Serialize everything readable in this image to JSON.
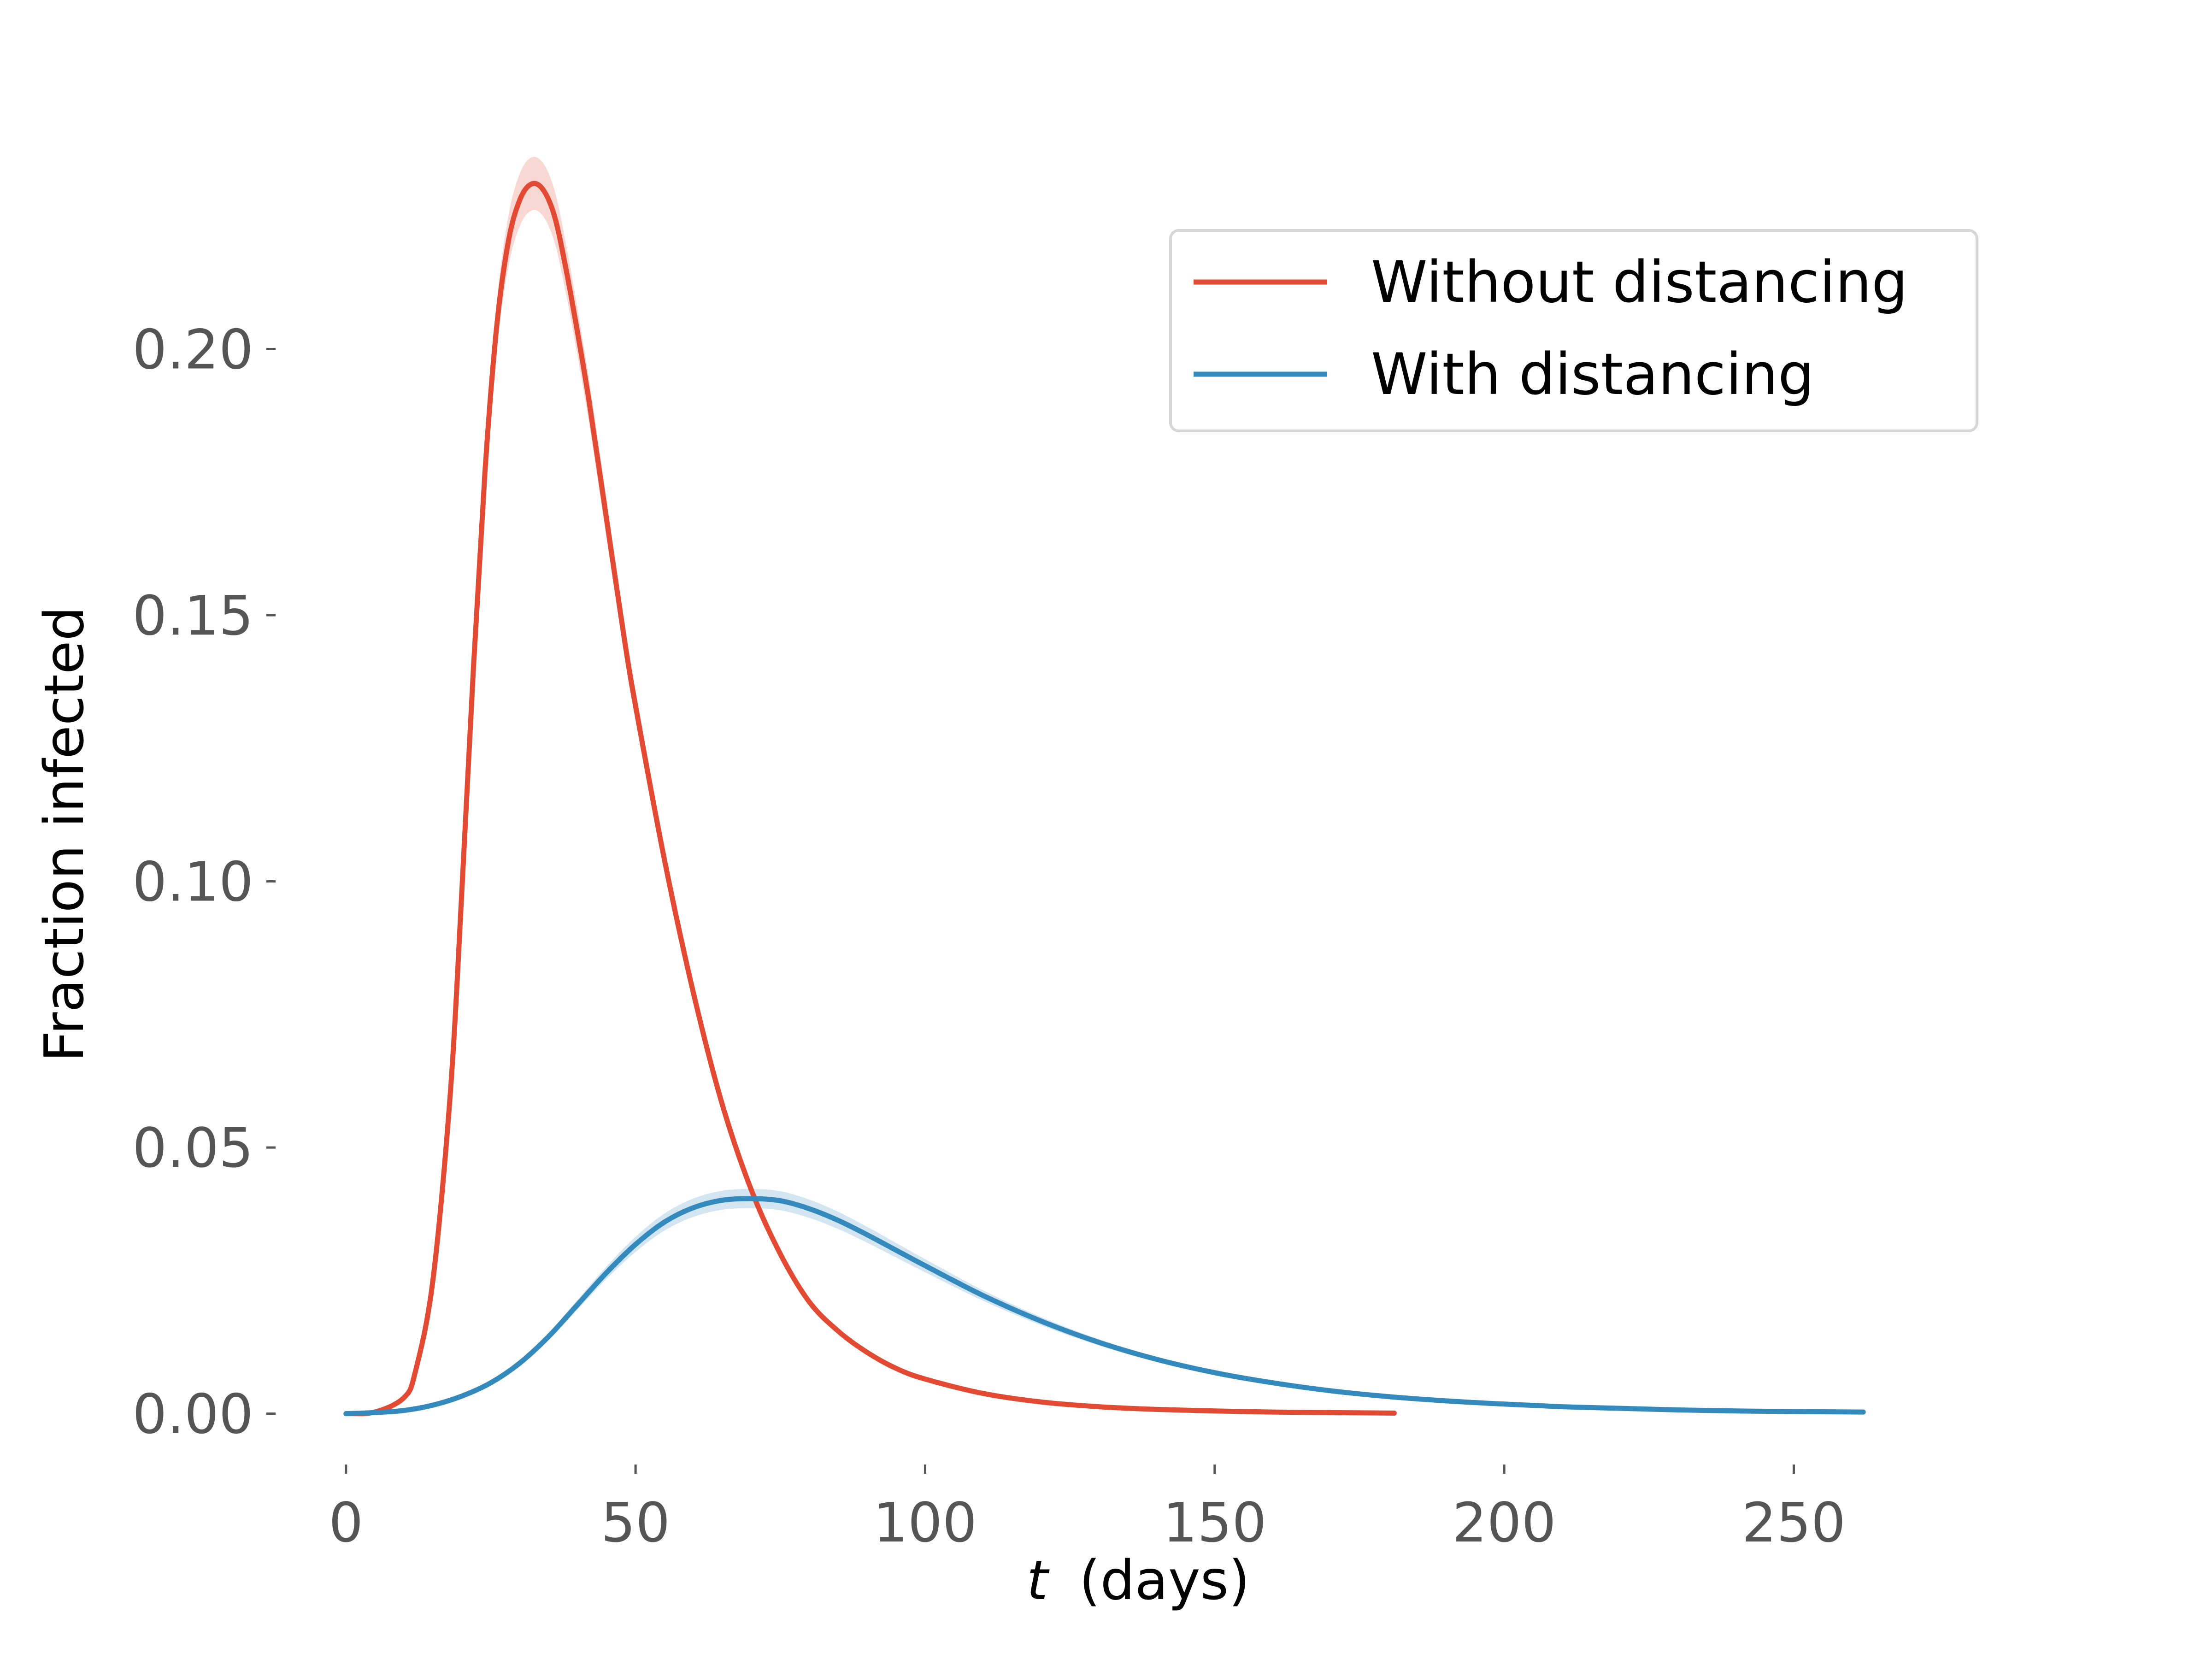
{
  "chart_data": {
    "type": "line",
    "title": "",
    "xlabel_var": "t",
    "xlabel_unit": " (days)",
    "ylabel": "Fraction infected",
    "xlim": [
      -12,
      288
    ],
    "ylim": [
      -0.008,
      0.25
    ],
    "xticks": [
      0,
      50,
      100,
      150,
      200,
      250
    ],
    "xtick_labels": [
      "0",
      "50",
      "100",
      "150",
      "200",
      "250"
    ],
    "yticks": [
      0.0,
      0.05,
      0.1,
      0.15,
      0.2
    ],
    "ytick_labels": [
      "0.00",
      "0.05",
      "0.10",
      "0.15",
      "0.20"
    ],
    "grid": false,
    "legend_position": "top-right",
    "series": [
      {
        "name": "Without distancing",
        "color": "#e24a33",
        "x": [
          0,
          5,
          10,
          12,
          15,
          18,
          20,
          22,
          24,
          26,
          28,
          30,
          32,
          34,
          36,
          38,
          40,
          42,
          45,
          48,
          50,
          55,
          60,
          65,
          70,
          75,
          80,
          85,
          90,
          95,
          100,
          110,
          120,
          130,
          140,
          150,
          160,
          170,
          181
        ],
        "y": [
          0.0,
          0.0003,
          0.003,
          0.008,
          0.025,
          0.06,
          0.098,
          0.14,
          0.177,
          0.204,
          0.22,
          0.228,
          0.231,
          0.23,
          0.225,
          0.215,
          0.203,
          0.19,
          0.168,
          0.146,
          0.133,
          0.104,
          0.079,
          0.058,
          0.042,
          0.03,
          0.021,
          0.0155,
          0.0115,
          0.0085,
          0.0065,
          0.0038,
          0.0022,
          0.0013,
          0.0008,
          0.0005,
          0.0003,
          0.0002,
          0.0001
        ],
        "band": 0.005
      },
      {
        "name": "With distancing",
        "color": "#348abd",
        "x": [
          0,
          5,
          10,
          15,
          20,
          25,
          30,
          35,
          40,
          45,
          50,
          55,
          60,
          65,
          70,
          75,
          80,
          85,
          90,
          95,
          100,
          110,
          120,
          130,
          140,
          150,
          160,
          170,
          180,
          190,
          200,
          210,
          220,
          230,
          240,
          250,
          262
        ],
        "y": [
          0.0,
          0.0002,
          0.0006,
          0.0016,
          0.0033,
          0.0058,
          0.0095,
          0.0145,
          0.0205,
          0.0265,
          0.0318,
          0.036,
          0.0387,
          0.0401,
          0.0404,
          0.04,
          0.0385,
          0.0363,
          0.0336,
          0.0307,
          0.0278,
          0.0222,
          0.0174,
          0.0134,
          0.0102,
          0.0077,
          0.0058,
          0.0043,
          0.0032,
          0.0024,
          0.0018,
          0.0013,
          0.001,
          0.0007,
          0.0005,
          0.0004,
          0.0003
        ],
        "band": 0.0018
      }
    ]
  }
}
